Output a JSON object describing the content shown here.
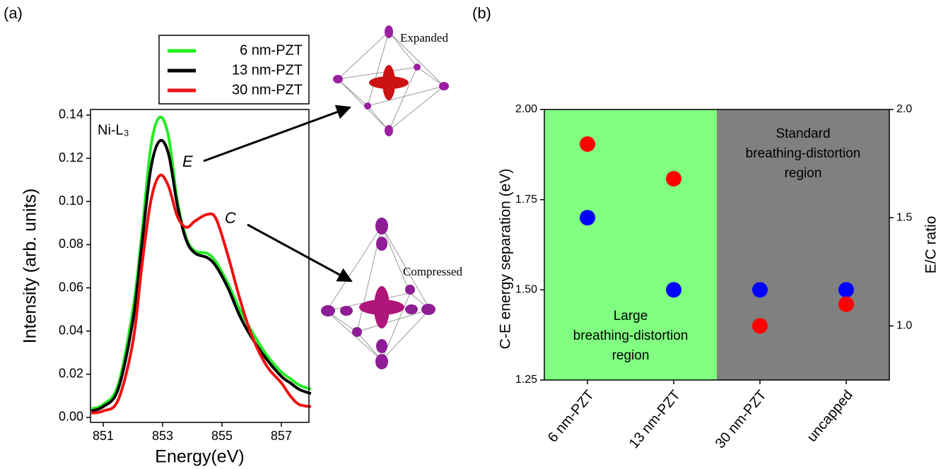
{
  "chart_data": [
    {
      "type": "line",
      "panel_label": "(a)",
      "x_label": "Energy(eV)",
      "y_label": "Intensity (arb. units)",
      "x": [
        850.6,
        851,
        851.5,
        852,
        852.3,
        852.6,
        852.9,
        853.2,
        853.5,
        853.8,
        854.1,
        854.5,
        854.8,
        855.2,
        855.6,
        856,
        856.5,
        857,
        857.3,
        857.6,
        858
      ],
      "series": [
        {
          "name": "6 nm-PZT",
          "color": "#22ee22",
          "values": [
            0.004,
            0.006,
            0.015,
            0.05,
            0.085,
            0.125,
            0.139,
            0.13,
            0.1,
            0.083,
            0.077,
            0.076,
            0.072,
            0.062,
            0.05,
            0.04,
            0.029,
            0.021,
            0.018,
            0.015,
            0.013
          ]
        },
        {
          "name": "13 nm-PZT",
          "color": "#000000",
          "values": [
            0.003,
            0.005,
            0.013,
            0.045,
            0.08,
            0.115,
            0.128,
            0.122,
            0.098,
            0.082,
            0.076,
            0.074,
            0.07,
            0.06,
            0.047,
            0.037,
            0.027,
            0.019,
            0.016,
            0.013,
            0.011
          ]
        },
        {
          "name": "30 nm-PZT",
          "color": "#ee1111",
          "values": [
            0.002,
            0.003,
            0.008,
            0.035,
            0.07,
            0.1,
            0.112,
            0.107,
            0.093,
            0.088,
            0.091,
            0.094,
            0.092,
            0.075,
            0.055,
            0.038,
            0.024,
            0.016,
            0.01,
            0.006,
            0.005
          ]
        }
      ],
      "xlim": [
        850.57,
        857.93
      ],
      "xticks": [
        851,
        853,
        855,
        857
      ],
      "ylim": [
        -0.0023,
        0.1426
      ],
      "yticks": [
        {
          "value": 0,
          "label": "0.00"
        },
        {
          "value": 0.02,
          "label": "0.02"
        },
        {
          "value": 0.04,
          "label": "0.04"
        },
        {
          "value": 0.06,
          "label": "0.06"
        },
        {
          "value": 0.08,
          "label": "0.08"
        },
        {
          "value": 0.1,
          "label": "0.10"
        },
        {
          "value": 0.12,
          "label": "0.12"
        },
        {
          "value": 0.14,
          "label": "0.14"
        }
      ],
      "annotations": [
        "Ni-L₃",
        "E",
        "C"
      ],
      "illustrations": [
        "Expanded",
        "Compressed"
      ]
    },
    {
      "type": "scatter",
      "panel_label": "(b)",
      "categories": [
        "6 nm-PZT",
        "13 nm-PZT",
        "30 nm-PZT",
        "uncapped"
      ],
      "y_label": "C-E energy separation (eV)",
      "y2_label": "E/C ratio",
      "series": [
        {
          "name": "C-E energy separation",
          "color": "#0000ff",
          "values": [
            1.7,
            1.5,
            1.5,
            1.5
          ]
        },
        {
          "name": "E/C ratio",
          "color": "#ff0000",
          "axis": "y2",
          "values": [
            1.84,
            1.68,
            1.0,
            1.1
          ]
        }
      ],
      "ylim": [
        1.25,
        2.0
      ],
      "yticks": [
        {
          "value": 1.25,
          "label": "1.25"
        },
        {
          "value": 1.5,
          "label": "1.50"
        },
        {
          "value": 1.75,
          "label": "1.75"
        },
        {
          "value": 2.0,
          "label": "2.00"
        }
      ],
      "y2lim": [
        0.75,
        2.0
      ],
      "y2ticks": [
        {
          "value": 1.0,
          "label": "1.0"
        },
        {
          "value": 1.5,
          "label": "1.5"
        },
        {
          "value": 2.0,
          "label": "2.0"
        }
      ],
      "regions": [
        {
          "from": "6 nm-PZT",
          "to": "13 nm-PZT",
          "color": "#80ff80",
          "label": [
            "Large",
            "breathing-distortion",
            "region"
          ]
        },
        {
          "from": "30 nm-PZT",
          "to": "uncapped",
          "color": "#808080",
          "label": [
            "Standard",
            "breathing-distortion",
            "region"
          ]
        }
      ]
    }
  ]
}
